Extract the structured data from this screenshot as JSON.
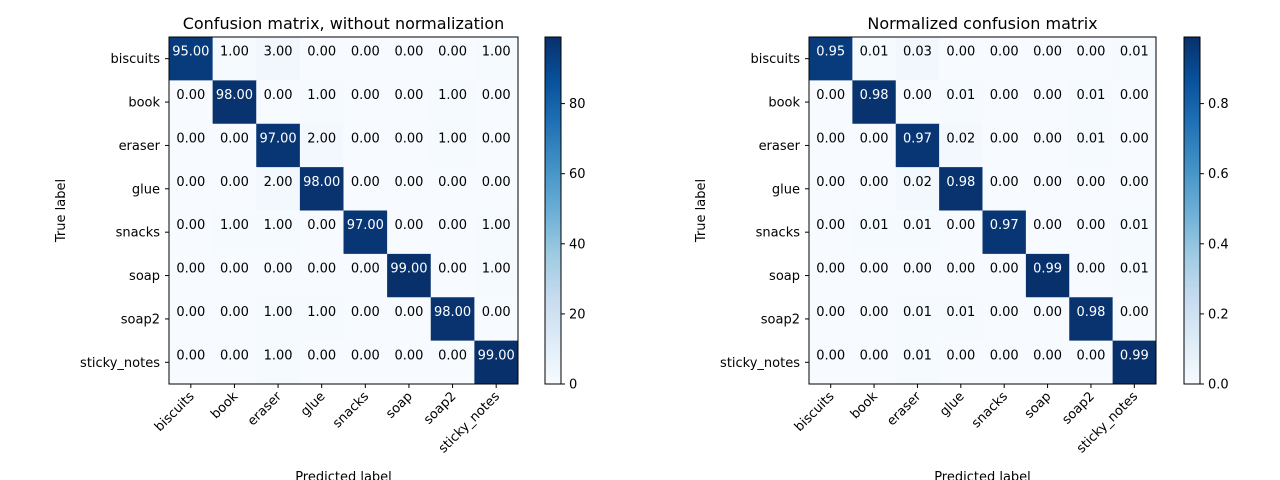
{
  "chart_data": [
    {
      "type": "heatmap",
      "title": "Confusion matrix, without normalization",
      "xlabel": "Predicted label",
      "ylabel": "True label",
      "x_categories": [
        "biscuits",
        "book",
        "eraser",
        "glue",
        "snacks",
        "soap",
        "soap2",
        "sticky_notes"
      ],
      "y_categories": [
        "biscuits",
        "book",
        "eraser",
        "glue",
        "snacks",
        "soap",
        "soap2",
        "sticky_notes"
      ],
      "values": [
        [
          95,
          1,
          3,
          0,
          0,
          0,
          0,
          1
        ],
        [
          0,
          98,
          0,
          1,
          0,
          0,
          1,
          0
        ],
        [
          0,
          0,
          97,
          2,
          0,
          0,
          1,
          0
        ],
        [
          0,
          0,
          2,
          98,
          0,
          0,
          0,
          0
        ],
        [
          0,
          1,
          1,
          0,
          97,
          0,
          0,
          1
        ],
        [
          0,
          0,
          0,
          0,
          0,
          99,
          0,
          1
        ],
        [
          0,
          0,
          1,
          1,
          0,
          0,
          98,
          0
        ],
        [
          0,
          0,
          1,
          0,
          0,
          0,
          0,
          99
        ]
      ],
      "cell_labels": [
        [
          "95.00",
          "1.00",
          "3.00",
          "0.00",
          "0.00",
          "0.00",
          "0.00",
          "1.00"
        ],
        [
          "0.00",
          "98.00",
          "0.00",
          "1.00",
          "0.00",
          "0.00",
          "1.00",
          "0.00"
        ],
        [
          "0.00",
          "0.00",
          "97.00",
          "2.00",
          "0.00",
          "0.00",
          "1.00",
          "0.00"
        ],
        [
          "0.00",
          "0.00",
          "2.00",
          "98.00",
          "0.00",
          "0.00",
          "0.00",
          "0.00"
        ],
        [
          "0.00",
          "1.00",
          "1.00",
          "0.00",
          "97.00",
          "0.00",
          "0.00",
          "1.00"
        ],
        [
          "0.00",
          "0.00",
          "0.00",
          "0.00",
          "0.00",
          "99.00",
          "0.00",
          "1.00"
        ],
        [
          "0.00",
          "0.00",
          "1.00",
          "1.00",
          "0.00",
          "0.00",
          "98.00",
          "0.00"
        ],
        [
          "0.00",
          "0.00",
          "1.00",
          "0.00",
          "0.00",
          "0.00",
          "0.00",
          "99.00"
        ]
      ],
      "colorbar": {
        "range": [
          0,
          99
        ],
        "ticks": [
          "0",
          "20",
          "40",
          "60",
          "80"
        ],
        "tick_values": [
          0,
          20,
          40,
          60,
          80
        ],
        "colormap": "Blues"
      }
    },
    {
      "type": "heatmap",
      "title": "Normalized confusion matrix",
      "xlabel": "Predicted label",
      "ylabel": "True label",
      "x_categories": [
        "biscuits",
        "book",
        "eraser",
        "glue",
        "snacks",
        "soap",
        "soap2",
        "sticky_notes"
      ],
      "y_categories": [
        "biscuits",
        "book",
        "eraser",
        "glue",
        "snacks",
        "soap",
        "soap2",
        "sticky_notes"
      ],
      "values": [
        [
          0.95,
          0.01,
          0.03,
          0,
          0,
          0,
          0,
          0.01
        ],
        [
          0,
          0.98,
          0,
          0.01,
          0,
          0,
          0.01,
          0
        ],
        [
          0,
          0,
          0.97,
          0.02,
          0,
          0,
          0.01,
          0
        ],
        [
          0,
          0,
          0.02,
          0.98,
          0,
          0,
          0,
          0
        ],
        [
          0,
          0.01,
          0.01,
          0,
          0.97,
          0,
          0,
          0.01
        ],
        [
          0,
          0,
          0,
          0,
          0,
          0.99,
          0,
          0.01
        ],
        [
          0,
          0,
          0.01,
          0.01,
          0,
          0,
          0.98,
          0
        ],
        [
          0,
          0,
          0.01,
          0,
          0,
          0,
          0,
          0.99
        ]
      ],
      "cell_labels": [
        [
          "0.95",
          "0.01",
          "0.03",
          "0.00",
          "0.00",
          "0.00",
          "0.00",
          "0.01"
        ],
        [
          "0.00",
          "0.98",
          "0.00",
          "0.01",
          "0.00",
          "0.00",
          "0.01",
          "0.00"
        ],
        [
          "0.00",
          "0.00",
          "0.97",
          "0.02",
          "0.00",
          "0.00",
          "0.01",
          "0.00"
        ],
        [
          "0.00",
          "0.00",
          "0.02",
          "0.98",
          "0.00",
          "0.00",
          "0.00",
          "0.00"
        ],
        [
          "0.00",
          "0.01",
          "0.01",
          "0.00",
          "0.97",
          "0.00",
          "0.00",
          "0.01"
        ],
        [
          "0.00",
          "0.00",
          "0.00",
          "0.00",
          "0.00",
          "0.99",
          "0.00",
          "0.01"
        ],
        [
          "0.00",
          "0.00",
          "0.01",
          "0.01",
          "0.00",
          "0.00",
          "0.98",
          "0.00"
        ],
        [
          "0.00",
          "0.00",
          "0.01",
          "0.00",
          "0.00",
          "0.00",
          "0.00",
          "0.99"
        ]
      ],
      "colorbar": {
        "range": [
          0,
          0.99
        ],
        "ticks": [
          "0.0",
          "0.2",
          "0.4",
          "0.6",
          "0.8"
        ],
        "tick_values": [
          0,
          0.2,
          0.4,
          0.6,
          0.8
        ],
        "colormap": "Blues"
      }
    }
  ]
}
